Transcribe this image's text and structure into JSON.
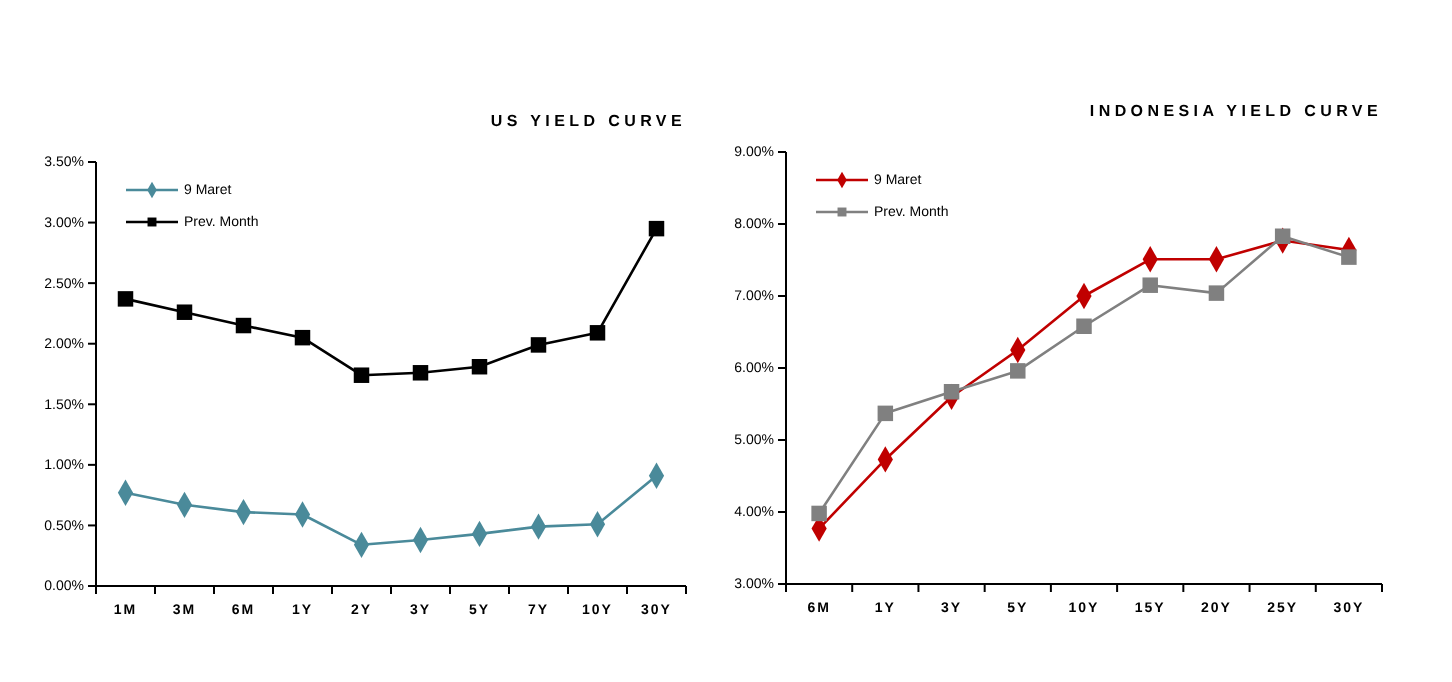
{
  "chart_data": [
    {
      "type": "line",
      "title": "US YIELD CURVE",
      "categories": [
        "1M",
        "3M",
        "6M",
        "1Y",
        "2Y",
        "3Y",
        "5Y",
        "7Y",
        "10Y",
        "30Y"
      ],
      "series": [
        {
          "name": "9 Maret",
          "color": "#4a8a9a",
          "marker": "diamond",
          "values": [
            0.77,
            0.67,
            0.61,
            0.59,
            0.34,
            0.38,
            0.43,
            0.49,
            0.51,
            0.91
          ]
        },
        {
          "name": "Prev. Month",
          "color": "#000000",
          "marker": "square",
          "values": [
            2.37,
            2.26,
            2.15,
            2.05,
            1.74,
            1.76,
            1.81,
            1.99,
            2.09,
            2.95
          ]
        }
      ],
      "ylim": [
        0,
        3.5
      ],
      "yticks": [
        {
          "value": 0,
          "label": "0.00%"
        },
        {
          "value": 0.5,
          "label": "0.50%"
        },
        {
          "value": 1,
          "label": "1.00%"
        },
        {
          "value": 1.5,
          "label": "1.50%"
        },
        {
          "value": 2,
          "label": "2.00%"
        },
        {
          "value": 2.5,
          "label": "2.50%"
        },
        {
          "value": 3,
          "label": "3.00%"
        },
        {
          "value": 3.5,
          "label": "3.50%"
        }
      ],
      "grid": false,
      "legend": "top left"
    },
    {
      "type": "line",
      "title": "INDONESIA YIELD CURVE",
      "categories": [
        "6M",
        "1Y",
        "3Y",
        "5Y",
        "10Y",
        "15Y",
        "20Y",
        "25Y",
        "30Y"
      ],
      "series": [
        {
          "name": "9 Maret",
          "color": "#c00000",
          "marker": "diamond",
          "values": [
            3.77,
            4.73,
            5.6,
            6.25,
            7.0,
            7.51,
            7.51,
            7.77,
            7.64
          ]
        },
        {
          "name": "Prev. Month",
          "color": "#808080",
          "marker": "square",
          "values": [
            3.98,
            5.37,
            5.67,
            5.96,
            6.58,
            7.15,
            7.04,
            7.83,
            7.54
          ]
        }
      ],
      "ylim": [
        3,
        9
      ],
      "yticks": [
        {
          "value": 3,
          "label": "3.00%"
        },
        {
          "value": 4,
          "label": "4.00%"
        },
        {
          "value": 5,
          "label": "5.00%"
        },
        {
          "value": 6,
          "label": "6.00%"
        },
        {
          "value": 7,
          "label": "7.00%"
        },
        {
          "value": 8,
          "label": "8.00%"
        },
        {
          "value": 9,
          "label": "9.00%"
        }
      ],
      "grid": false,
      "legend": "top left"
    }
  ]
}
